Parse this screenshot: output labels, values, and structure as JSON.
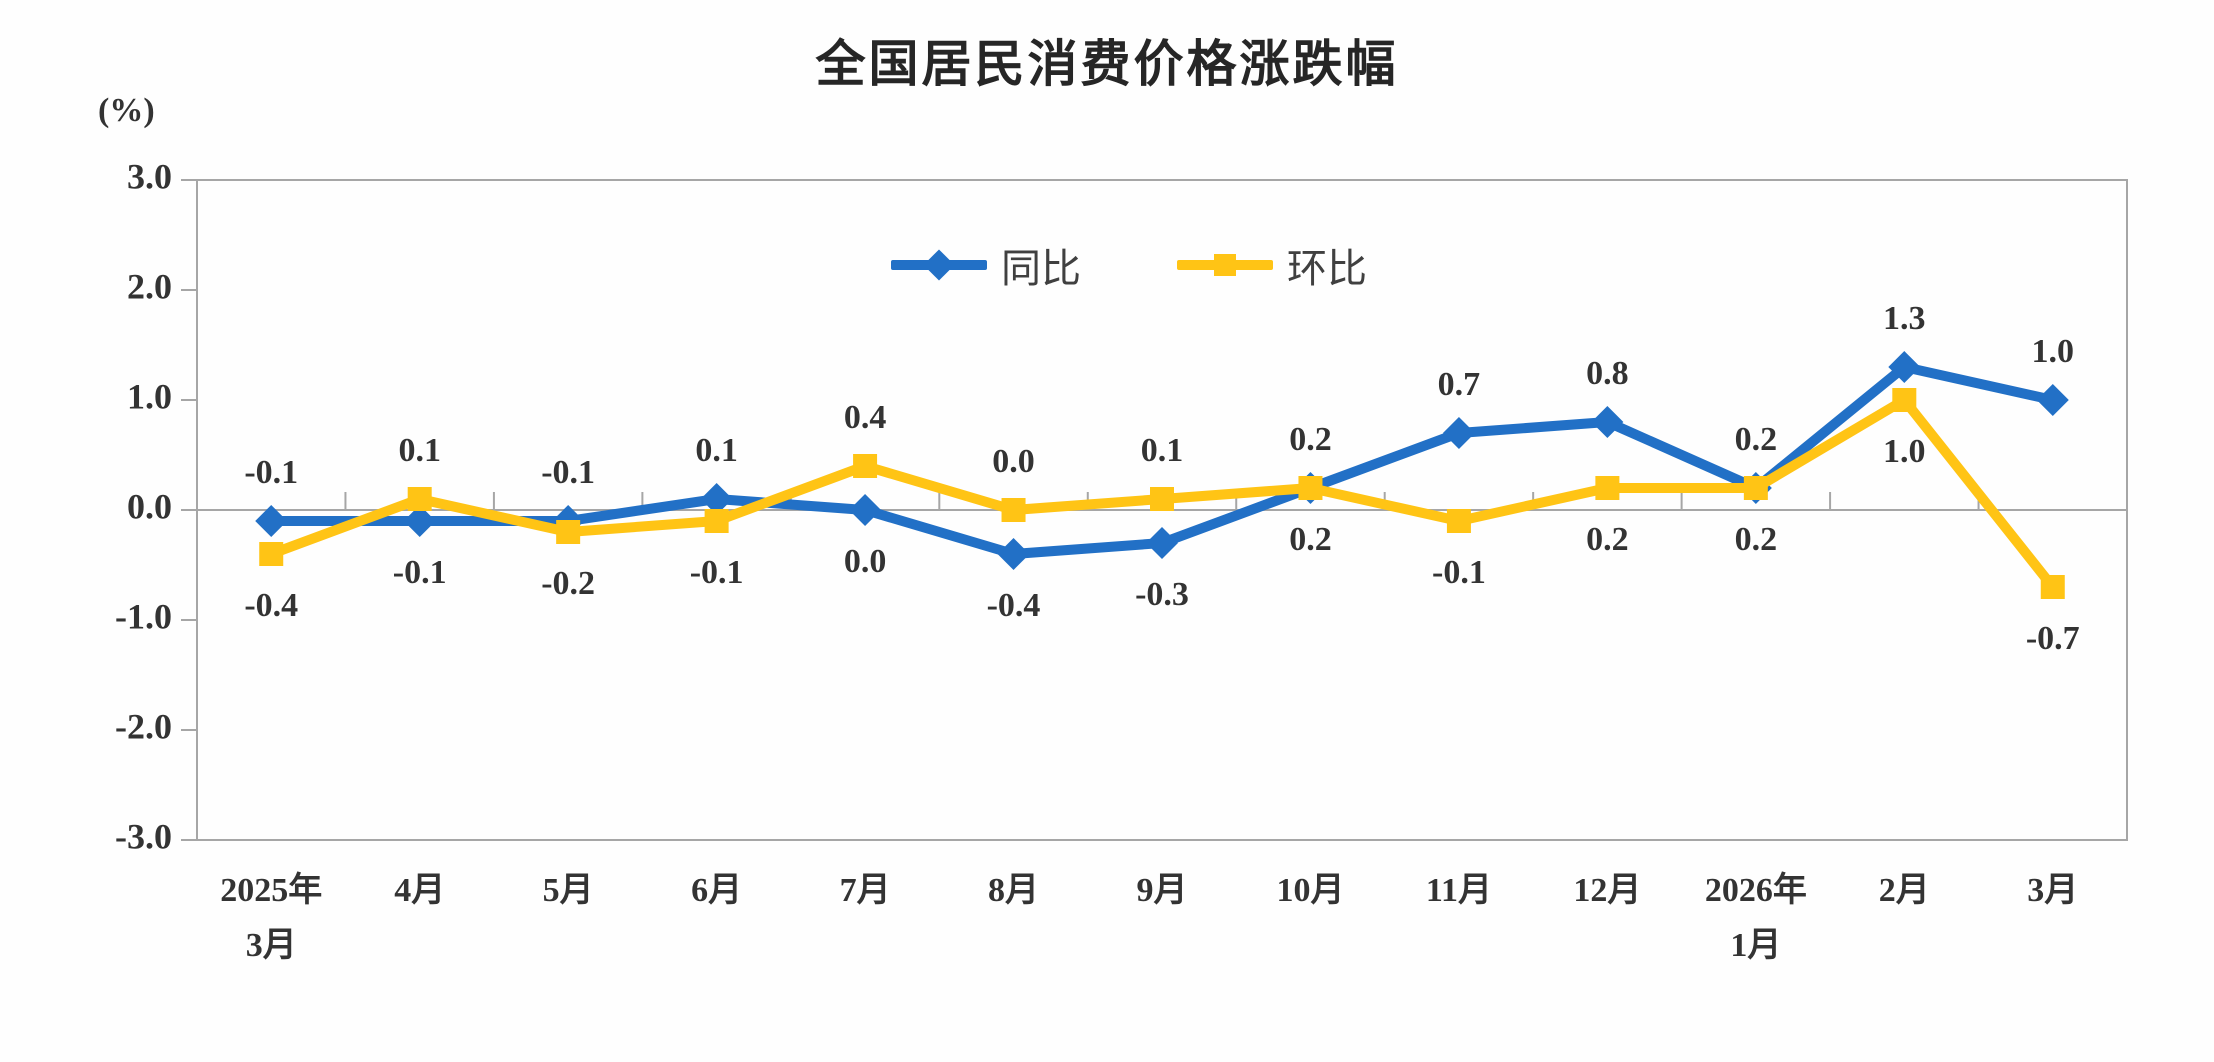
{
  "title": "全国居民消费价格涨跌幅",
  "y_axis": {
    "unit_label": "(%)",
    "tick_labels": [
      "3.0",
      "2.0",
      "1.0",
      "0.0",
      "-1.0",
      "-2.0",
      "-3.0"
    ],
    "max": 3.0,
    "min": -3.0,
    "step": 1.0
  },
  "x_axis": {
    "labels": [
      [
        "2025年",
        "3月"
      ],
      [
        "4月"
      ],
      [
        "5月"
      ],
      [
        "6月"
      ],
      [
        "7月"
      ],
      [
        "8月"
      ],
      [
        "9月"
      ],
      [
        "10月"
      ],
      [
        "11月"
      ],
      [
        "12月"
      ],
      [
        "2026年",
        "1月"
      ],
      [
        "2月"
      ],
      [
        "3月"
      ]
    ]
  },
  "colors": {
    "yoy_blue": "#2270C6",
    "mom_yellow": "#FFC415",
    "axis_gray": "#A6A6A6",
    "label_text": "#333333"
  },
  "chart_data": {
    "type": "line",
    "title": "全国居民消费价格涨跌幅",
    "ylabel": "(%)",
    "ylim": [
      -3.0,
      3.0
    ],
    "y_tick_step": 1.0,
    "grid": false,
    "legend_position": "top-center",
    "categories": [
      "2025年3月",
      "4月",
      "5月",
      "6月",
      "7月",
      "8月",
      "9月",
      "10月",
      "11月",
      "12月",
      "2026年1月",
      "2月",
      "3月"
    ],
    "series": [
      {
        "name": "同比",
        "marker": "diamond",
        "color": "#2270C6",
        "values": [
          -0.1,
          -0.1,
          -0.1,
          0.1,
          0.0,
          -0.4,
          -0.3,
          0.2,
          0.7,
          0.8,
          0.2,
          1.3,
          1.0
        ]
      },
      {
        "name": "环比",
        "marker": "square",
        "color": "#FFC415",
        "values": [
          -0.4,
          0.1,
          -0.2,
          -0.1,
          0.4,
          0.0,
          0.1,
          0.2,
          -0.1,
          0.2,
          0.2,
          1.0,
          -0.7
        ]
      }
    ]
  }
}
